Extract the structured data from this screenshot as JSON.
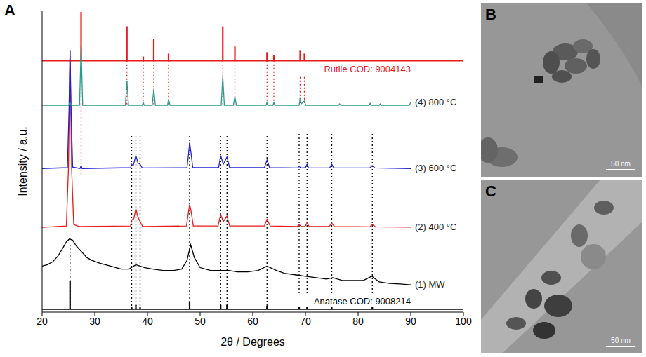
{
  "chart_data": {
    "type": "line",
    "panel": "A",
    "x_label": "2θ / Degrees",
    "y_label": "Intensity / a.u.",
    "xlim": [
      20,
      100
    ],
    "xticks": [
      20,
      30,
      40,
      50,
      60,
      70,
      80,
      90,
      100
    ],
    "ylim": [
      0,
      105
    ],
    "tick_labels": "x",
    "grid": false,
    "series": [
      {
        "name": "(1) MW",
        "type": "line",
        "color": "#000000",
        "x": [
          20,
          21,
          22,
          23,
          24,
          24.6,
          25.2,
          25.8,
          26.5,
          27.5,
          28.5,
          29.5,
          31,
          33,
          35,
          36.5,
          37.8,
          39.5,
          41,
          43,
          45,
          46.5,
          47.5,
          48.2,
          48.9,
          50,
          52,
          54,
          55.5,
          57,
          59,
          61,
          62.7,
          64.5,
          66,
          68,
          70,
          72,
          74,
          75.2,
          77,
          79,
          81,
          82.6,
          84,
          86,
          88,
          90
        ],
        "values": [
          16,
          16.5,
          17.5,
          19.5,
          22.5,
          24.5,
          25.5,
          25,
          23,
          21,
          19,
          18,
          17,
          16,
          15,
          15,
          16.5,
          15.5,
          15,
          14.5,
          14.5,
          15,
          18,
          23.5,
          19,
          15.5,
          14.5,
          14.5,
          14.5,
          14,
          14,
          14.5,
          16,
          14.5,
          13.5,
          13,
          12.5,
          12,
          11.5,
          12,
          11,
          11,
          11,
          12.5,
          10.5,
          10,
          9.8,
          9.5
        ]
      },
      {
        "name": "(2) 400 °C",
        "type": "line",
        "color": "#e81a1a",
        "x": [
          20,
          24.6,
          25,
          25.3,
          25.6,
          26,
          27,
          36.8,
          37,
          37.4,
          37.8,
          38.2,
          38.6,
          39.1,
          47.4,
          47.8,
          48,
          48.3,
          48.7,
          53.4,
          53.9,
          54.4,
          55.1,
          55.6,
          62.2,
          62.7,
          63.3,
          68.4,
          68.8,
          69.2,
          69.9,
          70.3,
          70.7,
          74.5,
          75,
          75.5,
          82.2,
          82.7,
          83.3,
          90
        ],
        "values": [
          29.5,
          30,
          50,
          91,
          50,
          30.5,
          29.8,
          30,
          32,
          32.5,
          36,
          33,
          31.5,
          29.8,
          30,
          35,
          37.5,
          35,
          30,
          30,
          34,
          31.5,
          33.5,
          30,
          30,
          32.3,
          30,
          29.8,
          30.5,
          29.8,
          29.8,
          31,
          29.8,
          29.8,
          31,
          29.8,
          29.7,
          30.5,
          29.7,
          29.6
        ]
      },
      {
        "name": "(3) 600 °C",
        "type": "line",
        "color": "#2020d0",
        "x": [
          20,
          24.8,
          25.1,
          25.3,
          25.5,
          25.8,
          27.2,
          27.4,
          27.6,
          36.8,
          37,
          37.3,
          37.8,
          38.2,
          38.6,
          39,
          47.5,
          47.8,
          48,
          48.3,
          48.6,
          53.5,
          53.9,
          54.4,
          55.1,
          55.6,
          62.2,
          62.7,
          63.2,
          68.5,
          68.8,
          69.1,
          70,
          70.3,
          70.6,
          74.6,
          75,
          75.4,
          82.2,
          82.7,
          83.2,
          90
        ],
        "values": [
          50,
          50.3,
          70,
          91,
          70,
          50.5,
          50,
          51,
          50,
          50.3,
          51.5,
          51,
          54.5,
          52,
          51.5,
          50.2,
          50.3,
          55,
          59,
          55,
          50.3,
          50.3,
          54.5,
          51.5,
          54,
          50.3,
          50.3,
          53,
          50.3,
          50.2,
          50.8,
          50.2,
          50.3,
          51.5,
          50.2,
          50.2,
          51.5,
          50.2,
          50.2,
          51,
          50.2,
          50
        ]
      },
      {
        "name": "(4) 800 °C",
        "type": "line",
        "color": "#2a9a8a",
        "x": [
          20,
          25,
          25.3,
          25.6,
          27.1,
          27.4,
          27.7,
          35.8,
          36.1,
          36.4,
          39,
          39.2,
          39.4,
          40.9,
          41.2,
          41.5,
          43.8,
          44,
          44.3,
          54,
          54.3,
          54.6,
          56.3,
          56.6,
          56.9,
          62.5,
          62.7,
          62.9,
          63.8,
          64,
          64.2,
          68.8,
          69,
          69.2,
          69.8,
          70.1,
          76.3,
          76.5,
          76.7,
          82.1,
          82.3,
          82.5,
          84,
          84.2,
          84.4,
          89.7,
          90
        ],
        "values": [
          72,
          72,
          73,
          72,
          72,
          92.5,
          72,
          72,
          80.5,
          72,
          72,
          73,
          72,
          72,
          77.5,
          72,
          72,
          74,
          72,
          72,
          82,
          72,
          72,
          75,
          72,
          72,
          73,
          72,
          72,
          73,
          72,
          72,
          74.5,
          72.5,
          73.5,
          72,
          72,
          72.5,
          72,
          72,
          72.7,
          72,
          72,
          72.5,
          72,
          72,
          73
        ]
      },
      {
        "name": "Rutile COD: 9004143",
        "type": "stick",
        "color": "#e81a1a",
        "baseline": 87.5,
        "x": [
          27.4,
          36.1,
          39.2,
          41.2,
          44.0,
          54.3,
          56.6,
          62.7,
          64.0,
          69.0,
          69.8
        ],
        "values": [
          104.5,
          99.5,
          89,
          95,
          90,
          99.5,
          92.5,
          90.5,
          89.5,
          91,
          90
        ],
        "guides": [
          {
            "x": 27.4,
            "to": 47.5
          },
          {
            "x": 36.1,
            "to": 72
          },
          {
            "x": 39.2,
            "to": 72
          },
          {
            "x": 41.2,
            "to": 72
          },
          {
            "x": 44.0,
            "to": 72
          },
          {
            "x": 54.3,
            "to": 72
          },
          {
            "x": 56.6,
            "to": 72
          },
          {
            "x": 62.7,
            "to": 72
          },
          {
            "x": 64.0,
            "to": 72
          },
          {
            "x": 69.0,
            "to": 72
          },
          {
            "x": 69.8,
            "to": 72
          }
        ]
      },
      {
        "name": "Anatase COD: 9008214",
        "type": "stick",
        "color": "#000000",
        "baseline": 1,
        "x": [
          25.3,
          37.0,
          37.8,
          38.6,
          48.0,
          53.9,
          55.1,
          62.7,
          68.8,
          70.3,
          75.0,
          82.7
        ],
        "values": [
          10.75,
          1.8,
          2.5,
          1.8,
          3.75,
          2.5,
          2.5,
          2.2,
          1.8,
          1.8,
          1.8,
          1.8
        ],
        "guides": [
          {
            "x": 25.3,
            "to": 24
          },
          {
            "x": 37.0,
            "to": 62
          },
          {
            "x": 37.8,
            "to": 62
          },
          {
            "x": 38.6,
            "to": 62
          },
          {
            "x": 48.0,
            "to": 62
          },
          {
            "x": 53.9,
            "to": 62
          },
          {
            "x": 55.1,
            "to": 62
          },
          {
            "x": 62.7,
            "to": 62
          },
          {
            "x": 68.8,
            "to": 62
          },
          {
            "x": 70.3,
            "to": 62
          },
          {
            "x": 75.0,
            "to": 62
          },
          {
            "x": 82.7,
            "to": 62
          }
        ]
      }
    ]
  },
  "images": [
    {
      "panel": "B",
      "scale_bar": "50 nm"
    },
    {
      "panel": "C",
      "scale_bar": "50 nm"
    }
  ]
}
